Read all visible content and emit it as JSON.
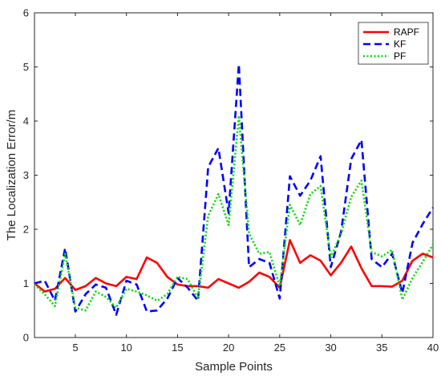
{
  "chart_data": {
    "type": "line",
    "title": "",
    "xlabel": "Sample Points",
    "ylabel": "The Localization Error/m",
    "xlim": [
      1,
      40
    ],
    "ylim": [
      0,
      6
    ],
    "x_ticks": [
      5,
      10,
      15,
      20,
      25,
      30,
      35,
      40
    ],
    "y_ticks": [
      0,
      1,
      2,
      3,
      4,
      5,
      6
    ],
    "grid": false,
    "legend_position": "top-right",
    "x": [
      1,
      2,
      3,
      4,
      5,
      6,
      7,
      8,
      9,
      10,
      11,
      12,
      13,
      14,
      15,
      16,
      17,
      18,
      19,
      20,
      21,
      22,
      23,
      24,
      25,
      26,
      27,
      28,
      29,
      30,
      31,
      32,
      33,
      34,
      35,
      36,
      37,
      38,
      39,
      40
    ],
    "series": [
      {
        "name": "RAPF",
        "color": "#ff0000",
        "style": "solid",
        "values": [
          1.0,
          0.85,
          0.9,
          1.1,
          0.88,
          0.95,
          1.1,
          1.0,
          0.95,
          1.12,
          1.08,
          1.48,
          1.38,
          1.12,
          0.98,
          0.95,
          0.95,
          0.92,
          1.08,
          1.0,
          0.92,
          1.03,
          1.2,
          1.12,
          0.92,
          1.8,
          1.38,
          1.52,
          1.42,
          1.15,
          1.38,
          1.68,
          1.28,
          0.95,
          0.95,
          0.94,
          1.05,
          1.42,
          1.55,
          1.48
        ]
      },
      {
        "name": "KF",
        "color": "#0000ff",
        "style": "dashed",
        "values": [
          1.0,
          1.05,
          0.68,
          1.65,
          0.48,
          0.8,
          0.98,
          0.92,
          0.42,
          1.05,
          0.98,
          0.48,
          0.5,
          0.72,
          1.1,
          0.92,
          0.68,
          3.15,
          3.5,
          2.3,
          5.05,
          1.3,
          1.45,
          1.38,
          0.72,
          2.98,
          2.62,
          2.9,
          3.35,
          1.3,
          1.95,
          3.3,
          3.65,
          1.45,
          1.3,
          1.55,
          0.82,
          1.75,
          2.1,
          2.4
        ]
      },
      {
        "name": "PF",
        "color": "#00dd00",
        "style": "dotted",
        "values": [
          0.98,
          0.8,
          0.58,
          1.55,
          0.55,
          0.5,
          0.85,
          0.75,
          0.55,
          0.9,
          0.85,
          0.78,
          0.68,
          0.8,
          1.12,
          1.08,
          0.72,
          2.25,
          2.65,
          2.08,
          4.1,
          1.92,
          1.55,
          1.58,
          0.95,
          2.45,
          2.08,
          2.65,
          2.8,
          1.48,
          1.92,
          2.6,
          2.9,
          1.58,
          1.5,
          1.62,
          0.7,
          1.1,
          1.4,
          1.72
        ]
      }
    ]
  }
}
